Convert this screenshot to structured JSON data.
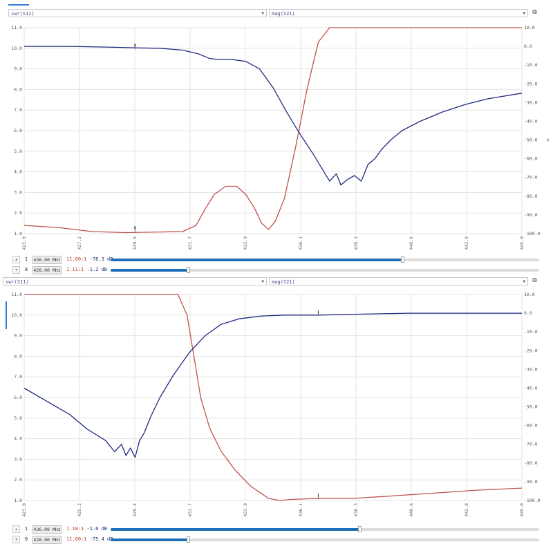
{
  "colors": {
    "s11": "#c0504d",
    "s21": "#1f2a80",
    "grid": "#e3e3e3",
    "accent": "#2e7dd1"
  },
  "panels": [
    {
      "select_left": "swr(S11)",
      "select_right": "mag(S21)",
      "markers": [
        {
          "num": "1",
          "freq": "436.00 MHz",
          "swr": "11.00:1",
          "mag": "-78.3 dB",
          "slider": 0.68
        },
        {
          "num": "8",
          "freq": "428.00 MHz",
          "swr": "1.11:1",
          "mag": "-1.2 dB",
          "slider": 0.18
        }
      ]
    },
    {
      "select_left": "swr(S11)",
      "select_right": "mag(S21)",
      "markers": [
        {
          "num": "1",
          "freq": "436.00 MHz",
          "swr": "1.10:1",
          "mag": "-1.0 dB",
          "slider": 0.58
        },
        {
          "num": "0",
          "freq": "428.00 MHz",
          "swr": "11.00:1",
          "mag": "-75.4 dB",
          "slider": 0.18
        }
      ]
    }
  ],
  "chart_data": [
    {
      "type": "line",
      "x_ticks": [
        "423.0",
        "427.2",
        "429.6",
        "431.7",
        "433.9",
        "436.1",
        "438.3",
        "440.6",
        "442.8",
        "445.0"
      ],
      "xlim": [
        423.0,
        445.0
      ],
      "y_left_ticks": [
        "11.0",
        "10.0",
        "9.0",
        "8.0",
        "7.0",
        "6.0",
        "5.0",
        "4.0",
        "3.0",
        "2.0",
        "1.0"
      ],
      "ylim_left": [
        1.0,
        11.0
      ],
      "y_right_ticks": [
        "10.0",
        "0.0",
        "-10.0",
        "-20.0",
        "-30.0",
        "-40.0",
        "-50.0",
        "-60.0",
        "-70.0",
        "-80.0",
        "-90.0",
        "-100.0"
      ],
      "ylim_right": [
        -100.0,
        10.0
      ],
      "grid": true,
      "marker_labels": [
        {
          "text": "8",
          "series": "s21",
          "x": 427.9,
          "y": -1.2
        },
        {
          "text": "8",
          "series": "s11",
          "x": 427.9,
          "y": 1.11
        }
      ],
      "series": [
        {
          "key": "s11",
          "axis": "left",
          "x": [
            423.0,
            424.5,
            426.0,
            427.5,
            429.0,
            430.0,
            430.6,
            431.0,
            431.4,
            431.9,
            432.4,
            432.8,
            433.2,
            433.5,
            433.8,
            434.1,
            434.5,
            435.0,
            435.5,
            436.0,
            436.5,
            437.0,
            440.0,
            445.0
          ],
          "y": [
            1.4,
            1.3,
            1.1,
            1.05,
            1.08,
            1.1,
            1.4,
            2.2,
            2.9,
            3.3,
            3.3,
            2.9,
            2.2,
            1.5,
            1.2,
            1.6,
            2.7,
            5.2,
            8.0,
            10.3,
            11.0,
            11.0,
            11.0,
            11.0
          ]
        },
        {
          "key": "s21",
          "axis": "right",
          "x": [
            423.0,
            425.0,
            427.0,
            428.0,
            429.0,
            430.0,
            430.7,
            431.2,
            431.6,
            432.2,
            432.8,
            433.4,
            434.0,
            434.6,
            435.2,
            435.8,
            436.2,
            436.5,
            436.8,
            437.0,
            437.3,
            437.6,
            437.9,
            438.2,
            438.5,
            438.8,
            439.2,
            439.7,
            440.5,
            441.5,
            442.5,
            443.5,
            445.0
          ],
          "y": [
            0.0,
            0.0,
            -0.5,
            -0.8,
            -1.0,
            -2.0,
            -4.0,
            -6.5,
            -7.0,
            -7.0,
            -8.0,
            -12.0,
            -22.0,
            -35.0,
            -47.0,
            -58.0,
            -66.0,
            -72.0,
            -68.0,
            -74.0,
            -71.0,
            -69.0,
            -72.0,
            -63.0,
            -60.0,
            -55.0,
            -50.0,
            -45.0,
            -40.0,
            -35.0,
            -31.0,
            -28.0,
            -25.0
          ]
        }
      ]
    },
    {
      "type": "line",
      "x_ticks": [
        "423.0",
        "425.2",
        "429.4",
        "431.7",
        "433.9",
        "436.1",
        "438.3",
        "440.6",
        "442.8",
        "445.0"
      ],
      "xlim": [
        423.0,
        445.0
      ],
      "y_left_ticks": [
        "11.0",
        "10.0",
        "9.0",
        "8.0",
        "7.0",
        "6.0",
        "5.0",
        "4.0",
        "3.0",
        "2.0",
        "1.0"
      ],
      "ylim_left": [
        1.0,
        11.0
      ],
      "y_right_ticks": [
        "10.0",
        "0.0",
        "-10.0",
        "-20.0",
        "-30.0",
        "-40.0",
        "-50.0",
        "-60.0",
        "-70.0",
        "-80.0",
        "-90.0",
        "-100.0"
      ],
      "ylim_right": [
        -100.0,
        10.0
      ],
      "grid": true,
      "marker_labels": [
        {
          "text": "1",
          "series": "s21",
          "x": 436.0,
          "y": -1.0
        },
        {
          "text": "1",
          "series": "s11",
          "x": 436.0,
          "y": 1.1
        }
      ],
      "series": [
        {
          "key": "s11",
          "axis": "left",
          "x": [
            423.0,
            425.0,
            427.0,
            428.5,
            429.8,
            430.2,
            430.5,
            430.8,
            431.2,
            431.7,
            432.3,
            433.0,
            433.8,
            434.3,
            434.8,
            436.0,
            437.5,
            439.0,
            441.0,
            443.0,
            445.0
          ],
          "y": [
            11.0,
            11.0,
            11.0,
            11.0,
            11.0,
            10.0,
            8.0,
            6.0,
            4.5,
            3.4,
            2.5,
            1.7,
            1.1,
            1.0,
            1.05,
            1.1,
            1.1,
            1.2,
            1.35,
            1.5,
            1.6
          ]
        },
        {
          "key": "s21",
          "axis": "right",
          "x": [
            423.0,
            424.0,
            425.0,
            425.8,
            426.6,
            427.0,
            427.3,
            427.5,
            427.7,
            427.9,
            428.1,
            428.3,
            428.6,
            429.0,
            429.6,
            430.3,
            431.0,
            431.7,
            432.5,
            433.5,
            434.5,
            436.0,
            438.0,
            440.0,
            445.0
          ],
          "y": [
            -40.0,
            -47.0,
            -54.0,
            -62.0,
            -68.0,
            -74.0,
            -70.0,
            -76.0,
            -72.0,
            -77.0,
            -68.0,
            -64.0,
            -55.0,
            -45.0,
            -33.0,
            -21.0,
            -12.0,
            -6.0,
            -3.0,
            -1.5,
            -1.0,
            -1.0,
            -0.5,
            0.0,
            0.0
          ]
        }
      ]
    }
  ]
}
